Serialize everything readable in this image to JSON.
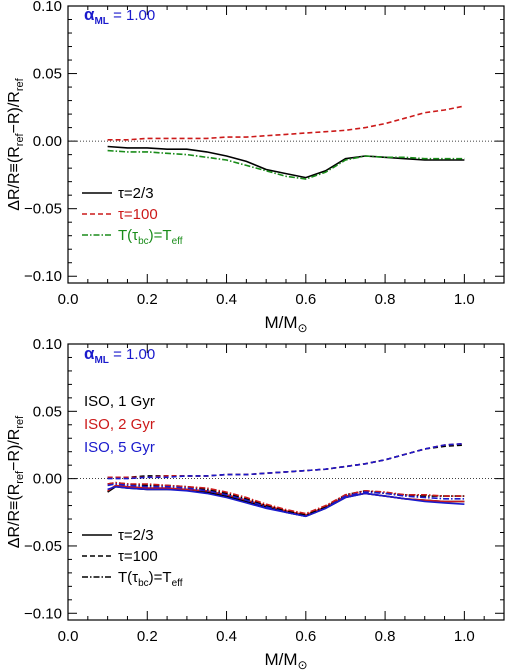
{
  "chart_data": [
    {
      "type": "line",
      "title": "",
      "xlabel": "M/M",
      "xlabel_sub": "⊙",
      "ylabel": "ΔR/R≡(R",
      "ylabel_parts": [
        "ΔR/R≡(R",
        "ref",
        "−R)/R",
        "ref"
      ],
      "xlim": [
        0.0,
        1.1
      ],
      "ylim": [
        -0.105,
        0.1
      ],
      "xticks": [
        0.0,
        0.2,
        0.4,
        0.6,
        0.8,
        1.0
      ],
      "xtick_labels": [
        "0.0",
        "0.2",
        "0.4",
        "0.6",
        "0.8",
        "1.0"
      ],
      "yticks": [
        -0.1,
        -0.05,
        0.0,
        0.05,
        0.1
      ],
      "ytick_labels": [
        "−0.10",
        "−0.05",
        "0.00",
        "0.05",
        "0.10"
      ],
      "reference_line": 0.0,
      "annotation": {
        "symbol": "α",
        "sub": "ML",
        "text": " = 1.00",
        "color": "#1a1acc"
      },
      "legend": {
        "placement": "bottom-left",
        "entries": [
          {
            "label": "τ=2/3",
            "style": "solid",
            "color": "#000000"
          },
          {
            "label": "τ=100",
            "style": "dashed",
            "color": "#cc1a1a"
          },
          {
            "label": "T(τ",
            "sub": "bc",
            "label2": ")=T",
            "sub2": "eff",
            "style": "dashdot",
            "color": "#1a8c1a"
          }
        ]
      },
      "series": [
        {
          "name": "τ=2/3",
          "style": "solid",
          "color": "#000000",
          "x": [
            0.1,
            0.15,
            0.2,
            0.25,
            0.3,
            0.35,
            0.4,
            0.45,
            0.5,
            0.55,
            0.6,
            0.65,
            0.7,
            0.75,
            0.8,
            0.85,
            0.9,
            0.95,
            1.0
          ],
          "y": [
            -0.004,
            -0.005,
            -0.005,
            -0.006,
            -0.006,
            -0.008,
            -0.011,
            -0.015,
            -0.021,
            -0.024,
            -0.027,
            -0.022,
            -0.013,
            -0.011,
            -0.012,
            -0.013,
            -0.014,
            -0.014,
            -0.014
          ]
        },
        {
          "name": "τ=100",
          "style": "dashed",
          "color": "#cc1a1a",
          "x": [
            0.1,
            0.15,
            0.2,
            0.25,
            0.3,
            0.35,
            0.4,
            0.45,
            0.5,
            0.55,
            0.6,
            0.65,
            0.7,
            0.75,
            0.8,
            0.85,
            0.9,
            0.95,
            1.0
          ],
          "y": [
            0.001,
            0.001,
            0.002,
            0.002,
            0.002,
            0.002,
            0.003,
            0.003,
            0.004,
            0.005,
            0.006,
            0.007,
            0.008,
            0.01,
            0.013,
            0.017,
            0.021,
            0.023,
            0.026
          ]
        },
        {
          "name": "T(τbc)=Teff",
          "style": "dashdot",
          "color": "#1a8c1a",
          "x": [
            0.1,
            0.15,
            0.2,
            0.25,
            0.3,
            0.35,
            0.4,
            0.45,
            0.5,
            0.55,
            0.6,
            0.65,
            0.7,
            0.75,
            0.8,
            0.85,
            0.9,
            0.95,
            1.0
          ],
          "y": [
            -0.007,
            -0.008,
            -0.008,
            -0.009,
            -0.01,
            -0.012,
            -0.014,
            -0.018,
            -0.022,
            -0.026,
            -0.028,
            -0.023,
            -0.014,
            -0.011,
            -0.012,
            -0.012,
            -0.013,
            -0.013,
            -0.013
          ]
        }
      ]
    },
    {
      "type": "line",
      "title": "",
      "xlabel": "M/M",
      "xlabel_sub": "⊙",
      "ylabel": "ΔR/R≡(R",
      "ylabel_parts": [
        "ΔR/R≡(R",
        "ref",
        "−R)/R",
        "ref"
      ],
      "xlim": [
        0.0,
        1.1
      ],
      "ylim": [
        -0.105,
        0.1
      ],
      "xticks": [
        0.0,
        0.2,
        0.4,
        0.6,
        0.8,
        1.0
      ],
      "xtick_labels": [
        "0.0",
        "0.2",
        "0.4",
        "0.6",
        "0.8",
        "1.0"
      ],
      "yticks": [
        -0.1,
        -0.05,
        0.0,
        0.05,
        0.1
      ],
      "ytick_labels": [
        "−0.10",
        "−0.05",
        "0.00",
        "0.05",
        "0.10"
      ],
      "reference_line": 0.0,
      "annotation": {
        "symbol": "α",
        "sub": "ML",
        "text": " = 1.00",
        "color": "#1a1acc"
      },
      "color_legend": [
        {
          "label": "ISO,   1 Gyr",
          "color": "#000000"
        },
        {
          "label": "ISO,   2 Gyr",
          "color": "#cc1a1a"
        },
        {
          "label": "ISO,   5 Gyr",
          "color": "#1a1acc"
        }
      ],
      "legend": {
        "placement": "bottom-left",
        "entries": [
          {
            "label": "τ=2/3",
            "style": "solid",
            "color": "#000000"
          },
          {
            "label": "τ=100",
            "style": "dashed",
            "color": "#000000"
          },
          {
            "label": "T(τ",
            "sub": "bc",
            "label2": ")=T",
            "sub2": "eff",
            "style": "dashdot",
            "color": "#000000"
          }
        ]
      },
      "series": [
        {
          "name": "ISO 1 Gyr τ=2/3",
          "style": "solid",
          "color": "#000000",
          "x": [
            0.1,
            0.12,
            0.15,
            0.2,
            0.25,
            0.3,
            0.35,
            0.4,
            0.45,
            0.5,
            0.55,
            0.6,
            0.65,
            0.7,
            0.75,
            0.8,
            0.85,
            0.9,
            0.95,
            1.0
          ],
          "y": [
            -0.01,
            -0.006,
            -0.007,
            -0.008,
            -0.008,
            -0.008,
            -0.01,
            -0.013,
            -0.017,
            -0.021,
            -0.025,
            -0.028,
            -0.022,
            -0.014,
            -0.011,
            -0.013,
            -0.015,
            -0.016,
            -0.017,
            -0.017
          ]
        },
        {
          "name": "ISO 2 Gyr τ=2/3",
          "style": "solid",
          "color": "#cc1a1a",
          "x": [
            0.1,
            0.12,
            0.15,
            0.2,
            0.25,
            0.3,
            0.35,
            0.4,
            0.45,
            0.5,
            0.55,
            0.6,
            0.65,
            0.7,
            0.75,
            0.8,
            0.85,
            0.9,
            0.95,
            1.0
          ],
          "y": [
            -0.009,
            -0.005,
            -0.006,
            -0.007,
            -0.007,
            -0.008,
            -0.009,
            -0.012,
            -0.016,
            -0.02,
            -0.024,
            -0.027,
            -0.021,
            -0.013,
            -0.011,
            -0.013,
            -0.015,
            -0.016,
            -0.017,
            -0.017
          ]
        },
        {
          "name": "ISO 5 Gyr τ=2/3",
          "style": "solid",
          "color": "#1a1acc",
          "x": [
            0.1,
            0.12,
            0.15,
            0.2,
            0.25,
            0.3,
            0.35,
            0.4,
            0.45,
            0.5,
            0.55,
            0.6,
            0.65,
            0.7,
            0.75,
            0.8,
            0.85,
            0.9,
            0.95,
            1.0
          ],
          "y": [
            -0.008,
            -0.006,
            -0.007,
            -0.008,
            -0.008,
            -0.009,
            -0.011,
            -0.014,
            -0.018,
            -0.022,
            -0.025,
            -0.028,
            -0.022,
            -0.014,
            -0.011,
            -0.013,
            -0.015,
            -0.017,
            -0.018,
            -0.019
          ]
        },
        {
          "name": "ISO 1 Gyr τ=100",
          "style": "dashed",
          "color": "#000000",
          "x": [
            0.1,
            0.15,
            0.2,
            0.25,
            0.3,
            0.35,
            0.4,
            0.45,
            0.5,
            0.55,
            0.6,
            0.65,
            0.7,
            0.75,
            0.8,
            0.85,
            0.9,
            0.95,
            1.0
          ],
          "y": [
            0.001,
            0.001,
            0.002,
            0.002,
            0.002,
            0.002,
            0.003,
            0.003,
            0.004,
            0.005,
            0.006,
            0.007,
            0.009,
            0.011,
            0.014,
            0.018,
            0.022,
            0.024,
            0.025
          ]
        },
        {
          "name": "ISO 2 Gyr τ=100",
          "style": "dashed",
          "color": "#cc1a1a",
          "x": [
            0.1,
            0.15,
            0.2,
            0.25,
            0.3,
            0.35,
            0.4,
            0.45,
            0.5,
            0.55,
            0.6,
            0.65,
            0.7,
            0.75,
            0.8,
            0.85,
            0.9,
            0.95,
            1.0
          ],
          "y": [
            0.001,
            0.001,
            0.001,
            0.002,
            0.002,
            0.002,
            0.003,
            0.003,
            0.004,
            0.005,
            0.006,
            0.007,
            0.009,
            0.011,
            0.014,
            0.018,
            0.022,
            0.025,
            0.026
          ]
        },
        {
          "name": "ISO 5 Gyr τ=100",
          "style": "dashed",
          "color": "#1a1acc",
          "x": [
            0.1,
            0.15,
            0.2,
            0.25,
            0.3,
            0.35,
            0.4,
            0.45,
            0.5,
            0.55,
            0.6,
            0.65,
            0.7,
            0.75,
            0.8,
            0.85,
            0.9,
            0.95,
            1.0
          ],
          "y": [
            0.0,
            0.0,
            0.001,
            0.001,
            0.002,
            0.002,
            0.003,
            0.003,
            0.004,
            0.005,
            0.006,
            0.007,
            0.009,
            0.011,
            0.014,
            0.018,
            0.022,
            0.025,
            0.026
          ]
        },
        {
          "name": "ISO 1 Gyr T(τbc)=Teff",
          "style": "dashdot",
          "color": "#000000",
          "x": [
            0.1,
            0.12,
            0.15,
            0.2,
            0.25,
            0.3,
            0.35,
            0.4,
            0.45,
            0.5,
            0.55,
            0.6,
            0.65,
            0.7,
            0.75,
            0.8,
            0.85,
            0.9,
            0.95,
            1.0
          ],
          "y": [
            -0.004,
            -0.003,
            -0.004,
            -0.005,
            -0.005,
            -0.006,
            -0.008,
            -0.011,
            -0.015,
            -0.02,
            -0.024,
            -0.027,
            -0.021,
            -0.012,
            -0.009,
            -0.011,
            -0.012,
            -0.013,
            -0.013,
            -0.013
          ]
        },
        {
          "name": "ISO 2 Gyr T(τbc)=Teff",
          "style": "dashdot",
          "color": "#cc1a1a",
          "x": [
            0.1,
            0.12,
            0.15,
            0.2,
            0.25,
            0.3,
            0.35,
            0.4,
            0.45,
            0.5,
            0.55,
            0.6,
            0.65,
            0.7,
            0.75,
            0.8,
            0.85,
            0.9,
            0.95,
            1.0
          ],
          "y": [
            -0.004,
            -0.003,
            -0.004,
            -0.004,
            -0.005,
            -0.006,
            -0.007,
            -0.01,
            -0.014,
            -0.019,
            -0.023,
            -0.026,
            -0.02,
            -0.012,
            -0.009,
            -0.01,
            -0.012,
            -0.012,
            -0.013,
            -0.013
          ]
        },
        {
          "name": "ISO 5 Gyr T(τbc)=Teff",
          "style": "dashdot",
          "color": "#1a1acc",
          "x": [
            0.1,
            0.12,
            0.15,
            0.2,
            0.25,
            0.3,
            0.35,
            0.4,
            0.45,
            0.5,
            0.55,
            0.6,
            0.65,
            0.7,
            0.75,
            0.8,
            0.85,
            0.9,
            0.95,
            1.0
          ],
          "y": [
            -0.005,
            -0.004,
            -0.005,
            -0.006,
            -0.006,
            -0.007,
            -0.009,
            -0.012,
            -0.016,
            -0.021,
            -0.025,
            -0.028,
            -0.022,
            -0.013,
            -0.01,
            -0.011,
            -0.013,
            -0.014,
            -0.015,
            -0.015
          ]
        }
      ]
    }
  ]
}
